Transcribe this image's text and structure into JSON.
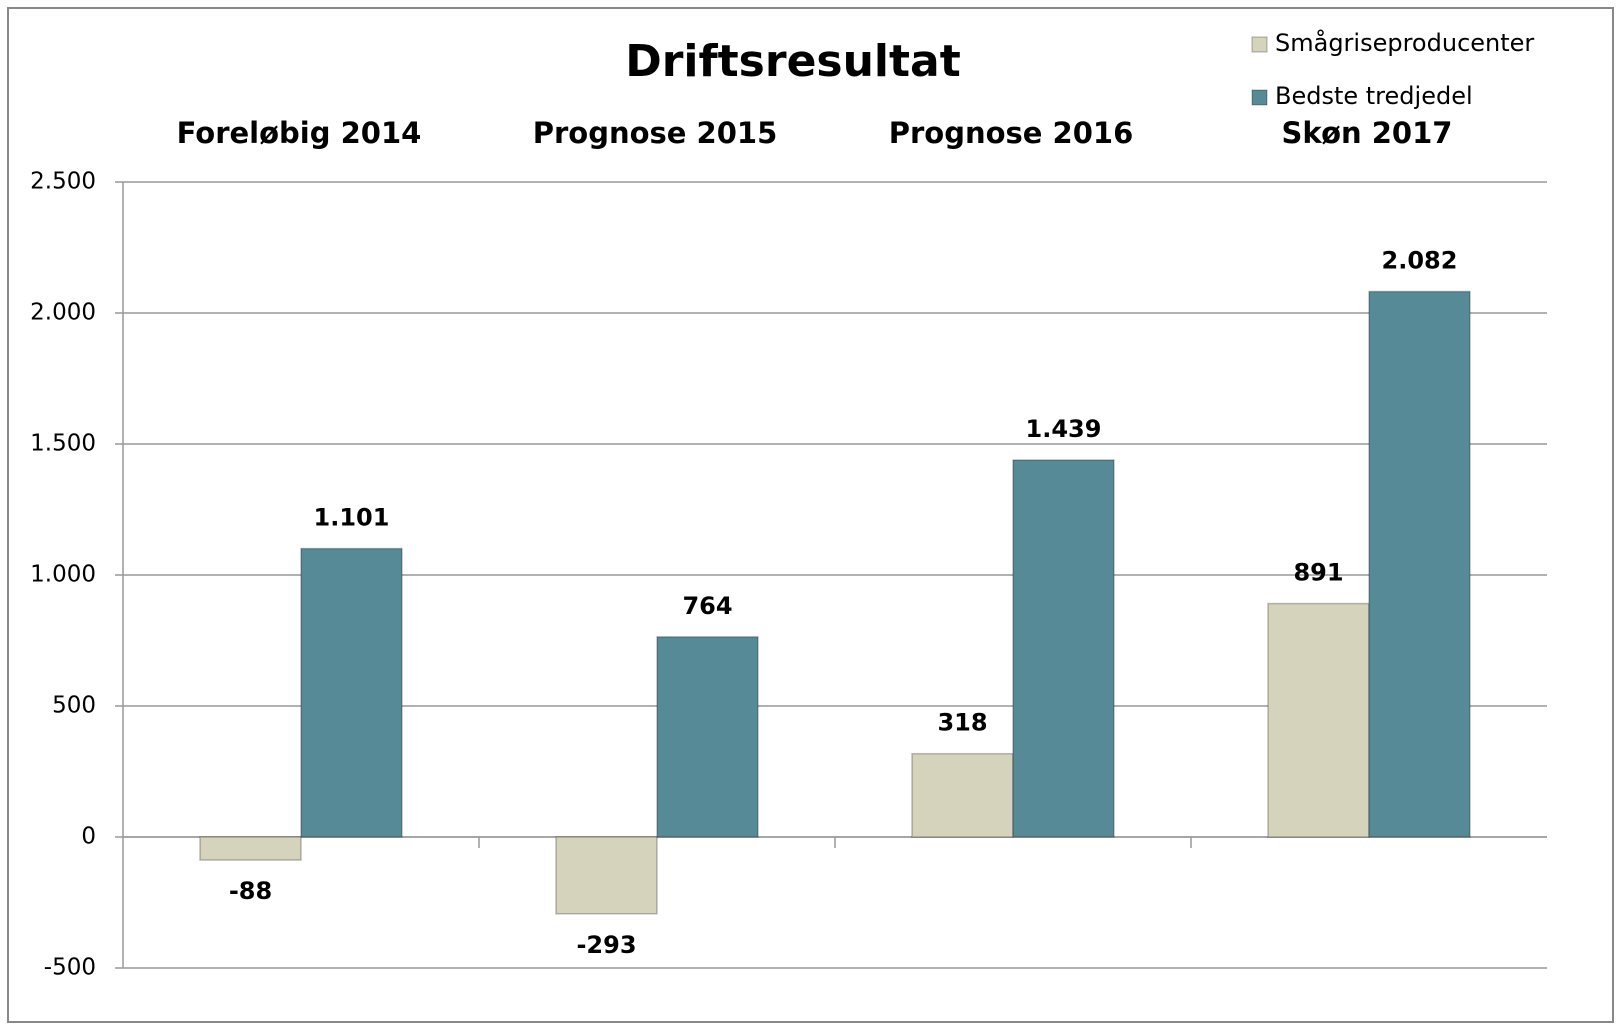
{
  "chart_data": {
    "type": "bar",
    "title": "Driftsresultat",
    "categories": [
      "Foreløbig 2014",
      "Prognose 2015",
      "Prognose 2016",
      "Skøn 2017"
    ],
    "series": [
      {
        "name": "Smågriseproducenter",
        "color": "#d6d3bd",
        "values": [
          -88,
          -293,
          318,
          891
        ]
      },
      {
        "name": "Bedste tredjedel",
        "color": "#568a96",
        "values": [
          1101,
          764,
          1439,
          2082
        ],
        "value_labels": [
          "1.101",
          "764",
          "1.439",
          "2.082"
        ]
      }
    ],
    "ylim": [
      -500,
      2500
    ],
    "yticks": [
      -500,
      0,
      500,
      {
        "value": 1000,
        "label": "1.000"
      },
      {
        "value": 1500,
        "label": "1.500"
      },
      {
        "value": 2000,
        "label": "2.000"
      },
      {
        "value": 2500,
        "label": "2.500"
      }
    ],
    "grid": true,
    "legend": "top-right"
  }
}
